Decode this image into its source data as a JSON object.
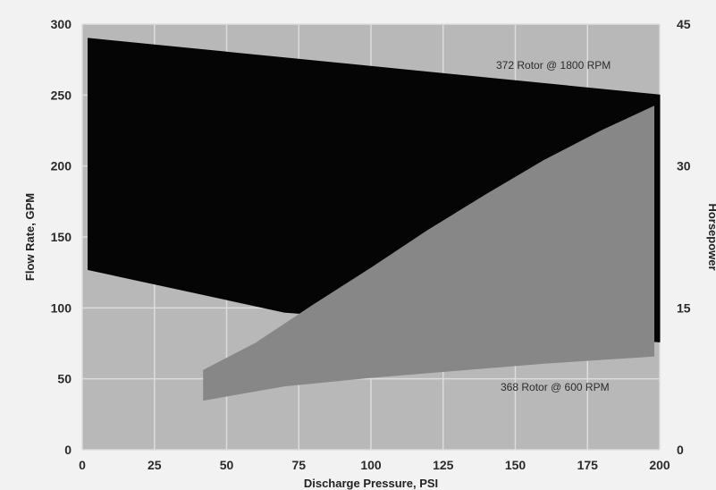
{
  "chart_data": {
    "type": "area",
    "title": "",
    "xlabel": "Discharge Pressure, PSI",
    "ylabel": "Flow Rate, GPM",
    "y2label": "Horsepower",
    "xlim": [
      0,
      200
    ],
    "ylim": [
      0,
      300
    ],
    "y2lim": [
      0,
      45
    ],
    "x_ticks": [
      "0",
      "25",
      "50",
      "75",
      "100",
      "125",
      "150",
      "175",
      "200"
    ],
    "y_ticks": [
      "0",
      "50",
      "100",
      "150",
      "200",
      "250",
      "300"
    ],
    "y2_ticks": [
      "0",
      "15",
      "30",
      "45"
    ],
    "grid": true,
    "series": [
      {
        "name": "372 Rotor @ 1800 RPM",
        "axis": "left",
        "color": "#050505",
        "upper": {
          "x": [
            2,
            200
          ],
          "y": [
            290,
            250
          ]
        },
        "lower": {
          "x": [
            2,
            70,
            200
          ],
          "y": [
            127,
            97,
            76
          ]
        }
      },
      {
        "name": "368 Rotor @ 600 RPM",
        "axis": "left",
        "color": "#878787",
        "upper": {
          "x": [
            42,
            60,
            80,
            100,
            120,
            140,
            160,
            180,
            198
          ],
          "y": [
            56,
            75,
            102,
            128,
            155,
            180,
            204,
            225,
            242
          ]
        },
        "lower": {
          "x": [
            42,
            70,
            100,
            130,
            160,
            198
          ],
          "y": [
            35,
            45,
            51,
            56,
            61,
            66
          ]
        }
      }
    ],
    "colors": {
      "plot_bg": "#b8b8b8",
      "grid": "#dcdcdc",
      "page_bg": "#f2f2f2"
    }
  }
}
